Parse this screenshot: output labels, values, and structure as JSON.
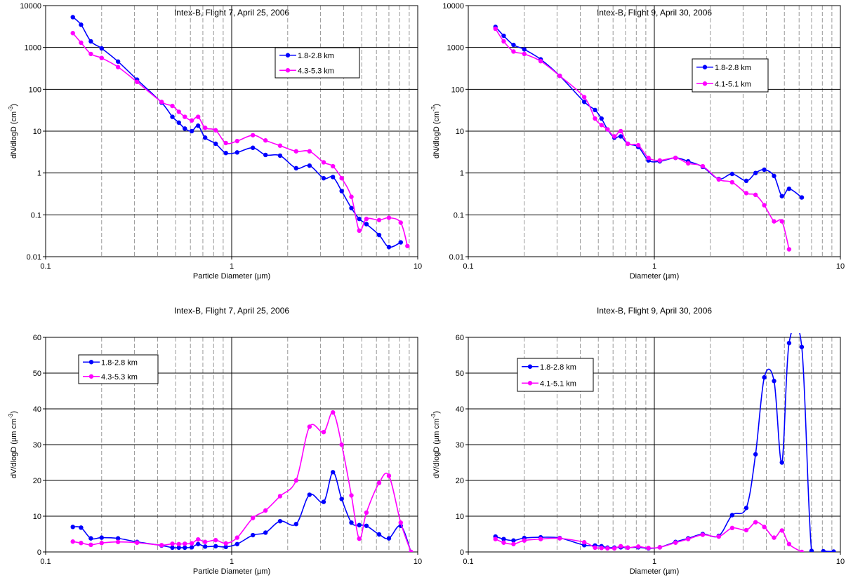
{
  "chart_data": [
    {
      "type": "line",
      "title": "Intex-B, Flight 7, April 25, 2006",
      "xlabel": "Particle Diameter (µm)",
      "ylabel_main": "dN/dlogD (cm",
      "ylabel_sup": "-3",
      "ylabel_tail": ")",
      "xscale": "log",
      "yscale": "log",
      "xlim": [
        0.1,
        10
      ],
      "ylim": [
        0.01,
        10000
      ],
      "xticks": [
        "0.1",
        "1",
        "10"
      ],
      "yticks": [
        "0.01",
        "0.1",
        "1",
        "10",
        "100",
        "1000",
        "10000"
      ],
      "grid": true,
      "legend": "top-right",
      "series": [
        {
          "name": "1.8-2.8 km",
          "color": "#0000ff",
          "x": [
            0.14,
            0.155,
            0.175,
            0.2,
            0.245,
            0.31,
            0.42,
            0.48,
            0.52,
            0.56,
            0.61,
            0.66,
            0.72,
            0.82,
            0.93,
            1.07,
            1.3,
            1.52,
            1.82,
            2.22,
            2.62,
            3.12,
            3.5,
            3.9,
            4.4,
            4.85,
            5.3,
            6.2,
            7.0,
            8.1
          ],
          "y": [
            5300,
            3500,
            1400,
            950,
            460,
            170,
            48,
            22,
            16,
            11.5,
            10,
            13.5,
            7,
            5,
            3,
            3.1,
            4,
            2.7,
            2.6,
            1.3,
            1.5,
            0.75,
            0.8,
            0.37,
            0.145,
            0.08,
            0.06,
            0.033,
            0.017,
            0.022
          ]
        },
        {
          "name": "4.3-5.3 km",
          "color": "#ff00ff",
          "x": [
            0.14,
            0.155,
            0.175,
            0.2,
            0.245,
            0.31,
            0.42,
            0.48,
            0.52,
            0.56,
            0.61,
            0.66,
            0.72,
            0.82,
            0.93,
            1.07,
            1.3,
            1.52,
            1.82,
            2.22,
            2.62,
            3.12,
            3.5,
            3.9,
            4.4,
            4.85,
            5.3,
            6.2,
            7.0,
            8.1,
            8.8
          ],
          "y": [
            2200,
            1300,
            700,
            560,
            340,
            150,
            50,
            40,
            29,
            22,
            18,
            22,
            12,
            10.5,
            5.2,
            5.8,
            8,
            6,
            4.5,
            3.3,
            3.3,
            1.8,
            1.45,
            0.75,
            0.27,
            0.042,
            0.08,
            0.075,
            0.085,
            0.065,
            0.018
          ]
        }
      ]
    },
    {
      "type": "line",
      "title": "Intex-B, Flight 9, April 30, 2006",
      "xlabel": "Diameter (µm)",
      "ylabel_main": "dN/dlogD (cm",
      "ylabel_sup": "-3",
      "ylabel_tail": ")",
      "xscale": "log",
      "yscale": "log",
      "xlim": [
        0.1,
        10
      ],
      "ylim": [
        0.01,
        10000
      ],
      "xticks": [
        "0.1",
        "1",
        "10"
      ],
      "yticks": [
        "0.01",
        "0.1",
        "1",
        "10",
        "100",
        "1000",
        "10000"
      ],
      "grid": true,
      "legend": "top-right",
      "series": [
        {
          "name": "1.8-2.8 km",
          "color": "#0000ff",
          "x": [
            0.14,
            0.155,
            0.175,
            0.2,
            0.245,
            0.31,
            0.42,
            0.48,
            0.52,
            0.56,
            0.61,
            0.66,
            0.72,
            0.82,
            0.93,
            1.07,
            1.3,
            1.52,
            1.82,
            2.22,
            2.62,
            3.12,
            3.5,
            3.9,
            4.4,
            4.85,
            5.3,
            6.2
          ],
          "y": [
            3100,
            1900,
            1150,
            900,
            520,
            210,
            50,
            32,
            20,
            11,
            7,
            7.5,
            5,
            4.2,
            2,
            1.9,
            2.3,
            1.9,
            1.4,
            0.72,
            0.95,
            0.65,
            1,
            1.2,
            0.85,
            0.28,
            0.42,
            0.26
          ]
        },
        {
          "name": "4.1-5.1 km",
          "color": "#ff00ff",
          "x": [
            0.14,
            0.155,
            0.175,
            0.2,
            0.245,
            0.31,
            0.42,
            0.48,
            0.52,
            0.56,
            0.61,
            0.66,
            0.72,
            0.82,
            0.93,
            1.07,
            1.3,
            1.52,
            1.82,
            2.22,
            2.62,
            3.12,
            3.5,
            3.9,
            4.4,
            4.85,
            5.3
          ],
          "y": [
            2800,
            1400,
            800,
            700,
            470,
            210,
            65,
            20,
            14,
            11,
            7.5,
            10,
            5,
            4.6,
            2.3,
            2,
            2.3,
            1.7,
            1.45,
            0.7,
            0.6,
            0.33,
            0.3,
            0.17,
            0.07,
            0.07,
            0.015
          ]
        }
      ]
    },
    {
      "type": "line",
      "title": "Intex-B, Flight 7, April 25, 2006",
      "xlabel": "Particle Diameter (µm)",
      "ylabel_main": "dV/dlogD (µm cm",
      "ylabel_sup": "-3",
      "ylabel_tail": ")",
      "xscale": "log",
      "yscale": "linear",
      "xlim": [
        0.1,
        10
      ],
      "ylim": [
        0,
        60
      ],
      "xticks": [
        "0.1",
        "1",
        "10"
      ],
      "yticks": [
        "0",
        "10",
        "20",
        "30",
        "40",
        "50",
        "60"
      ],
      "grid": true,
      "legend": "top-left",
      "series": [
        {
          "name": "1.8-2.8 km",
          "color": "#0000ff",
          "x": [
            0.14,
            0.155,
            0.175,
            0.2,
            0.245,
            0.31,
            0.42,
            0.48,
            0.52,
            0.56,
            0.61,
            0.66,
            0.72,
            0.82,
            0.93,
            1.07,
            1.3,
            1.52,
            1.82,
            2.22,
            2.62,
            3.12,
            3.5,
            3.9,
            4.4,
            4.85,
            5.3,
            6.2,
            7.0,
            8.1,
            9.2
          ],
          "y": [
            7,
            6.8,
            3.8,
            4,
            3.8,
            2.8,
            1.8,
            1.2,
            1.2,
            1.2,
            1.3,
            2.2,
            1.5,
            1.6,
            1.4,
            2.2,
            4.7,
            5.4,
            8.6,
            7.8,
            16,
            14,
            22.3,
            14.8,
            8.2,
            7.5,
            7.3,
            4.9,
            3.8,
            7.3,
            0
          ]
        },
        {
          "name": "4.3-5.3 km",
          "color": "#ff00ff",
          "x": [
            0.14,
            0.155,
            0.175,
            0.2,
            0.245,
            0.31,
            0.42,
            0.48,
            0.52,
            0.56,
            0.61,
            0.66,
            0.72,
            0.82,
            0.93,
            1.07,
            1.3,
            1.52,
            1.82,
            2.22,
            2.62,
            3.12,
            3.5,
            3.9,
            4.4,
            4.85,
            5.3,
            6.2,
            7.0,
            8.1,
            9.2
          ],
          "y": [
            2.9,
            2.5,
            2,
            2.5,
            2.8,
            2.6,
            1.9,
            2.3,
            2.2,
            2.3,
            2.4,
            3.5,
            2.8,
            3.3,
            2.4,
            4,
            9.5,
            11.6,
            15.6,
            20,
            35,
            33.5,
            39,
            30,
            15.8,
            3.7,
            11,
            19.3,
            21.3,
            8.2,
            0
          ]
        }
      ]
    },
    {
      "type": "line",
      "title": "Intex-B, Flight 9, April 30, 2006",
      "xlabel": "Diameter (µm)",
      "ylabel_main": "dV/dlogD (µm cm",
      "ylabel_sup": "-3",
      "ylabel_tail": ")",
      "xscale": "log",
      "yscale": "linear",
      "xlim": [
        0.1,
        10
      ],
      "ylim": [
        0,
        60
      ],
      "xticks": [
        "0.1",
        "1",
        "10"
      ],
      "yticks": [
        "0",
        "10",
        "20",
        "30",
        "40",
        "50",
        "60"
      ],
      "grid": true,
      "legend": "top-left",
      "series": [
        {
          "name": "1.8-2.8 km",
          "color": "#0000ff",
          "x": [
            0.14,
            0.155,
            0.175,
            0.2,
            0.245,
            0.31,
            0.42,
            0.48,
            0.52,
            0.56,
            0.61,
            0.66,
            0.72,
            0.82,
            0.93,
            1.07,
            1.3,
            1.52,
            1.82,
            2.22,
            2.62,
            3.12,
            3.5,
            3.9,
            4.4,
            4.85,
            5.3,
            6.2,
            7.0,
            8.1,
            9.2
          ],
          "y": [
            4.3,
            3.6,
            3.2,
            3.9,
            4.1,
            3.9,
            1.9,
            1.8,
            1.6,
            1.2,
            1.2,
            1.3,
            1.2,
            1.3,
            1.0,
            1.3,
            2.8,
            3.8,
            5,
            4.5,
            10.3,
            12.3,
            27.3,
            48.8,
            47.8,
            25,
            58.4,
            57.3,
            0.3,
            0.2,
            0.1
          ]
        },
        {
          "name": "4.1-5.1 km",
          "color": "#ff00ff",
          "x": [
            0.14,
            0.155,
            0.175,
            0.2,
            0.245,
            0.31,
            0.42,
            0.48,
            0.52,
            0.56,
            0.61,
            0.66,
            0.72,
            0.82,
            0.93,
            1.07,
            1.3,
            1.52,
            1.82,
            2.22,
            2.62,
            3.12,
            3.5,
            3.9,
            4.4,
            4.85,
            5.3,
            6.2
          ],
          "y": [
            3.6,
            2.6,
            2.2,
            3.2,
            3.6,
            3.8,
            2.7,
            1.2,
            1.1,
            1.0,
            1.0,
            1.6,
            1.2,
            1.5,
            1.1,
            1.3,
            2.6,
            3.6,
            4.8,
            4.3,
            6.7,
            6.1,
            8.3,
            7,
            4,
            6,
            2.2,
            0
          ]
        }
      ]
    }
  ]
}
